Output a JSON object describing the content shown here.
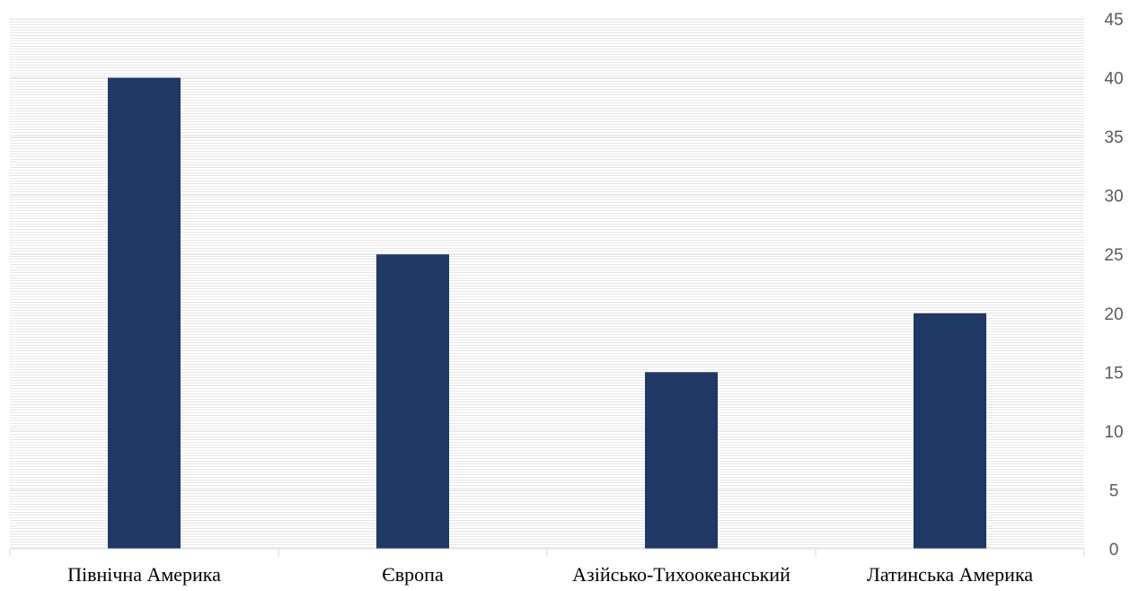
{
  "chart_data": {
    "type": "bar",
    "title": "",
    "xlabel": "",
    "ylabel": "",
    "categories": [
      "Північна Америка",
      "Європа",
      "Азійсько-Тихоокеанський",
      "Латинська Америка"
    ],
    "series": [
      {
        "values": [
          40,
          25,
          15,
          20
        ]
      }
    ],
    "ylim": [
      0,
      45
    ],
    "yticks": [
      0,
      5,
      10,
      15,
      20,
      25,
      30,
      35,
      40,
      45
    ],
    "y_axis_side": "right",
    "grid": "horizontal-hatched",
    "legend": "none",
    "bar_color": "#203864",
    "axis_color": "#d9d9d9",
    "tick_label_color": "#595959"
  }
}
